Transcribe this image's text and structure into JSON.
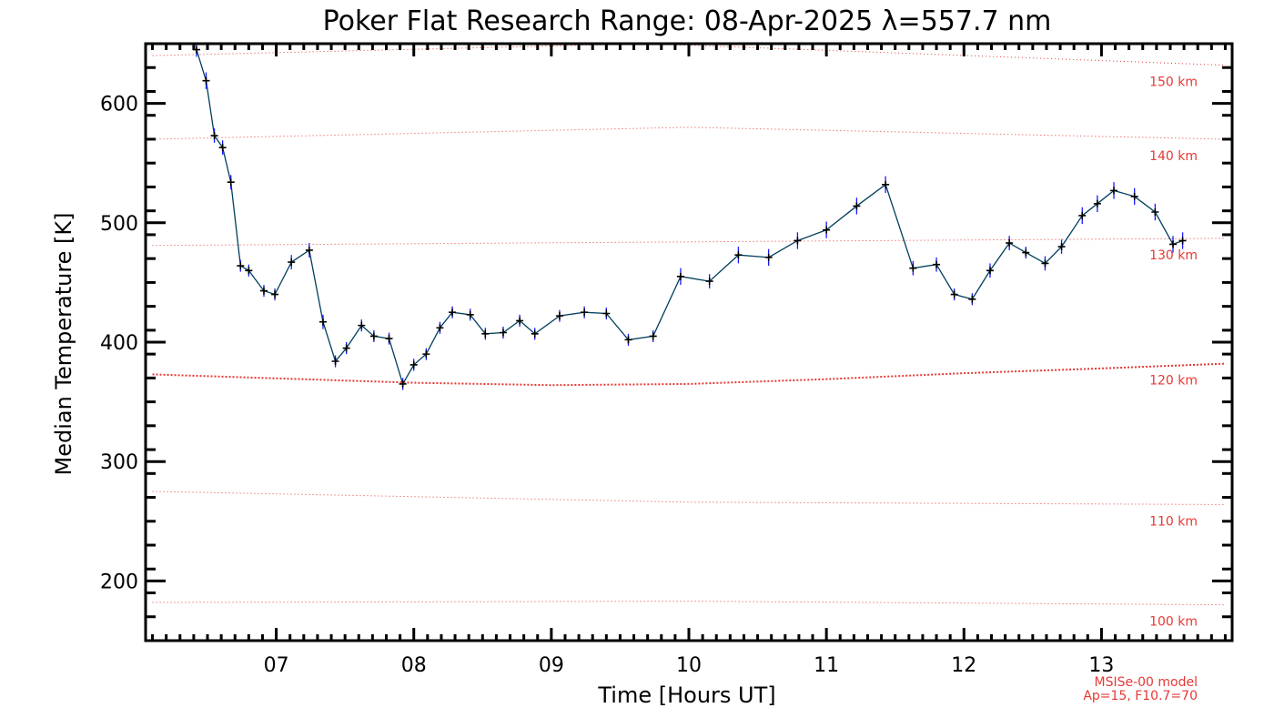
{
  "chart_data": {
    "type": "line",
    "title": "Poker Flat Research Range: 08-Apr-2025 λ=557.7 nm",
    "xlabel": "Time [Hours UT]",
    "ylabel": "Median Temperature [K]",
    "xlim": [
      6.05,
      13.95
    ],
    "ylim": [
      150,
      650
    ],
    "x_ticks": [
      7,
      8,
      9,
      10,
      11,
      12,
      13
    ],
    "x_tick_labels": [
      "07",
      "08",
      "09",
      "10",
      "11",
      "12",
      "13"
    ],
    "y_ticks": [
      200,
      300,
      400,
      500,
      600
    ],
    "y_tick_labels": [
      "200",
      "300",
      "400",
      "500",
      "600"
    ],
    "grid": false,
    "colors": {
      "series": "#003f5c",
      "error_bars": "#1a1aff",
      "markers": "#000000",
      "model": "#e53935"
    },
    "series": [
      {
        "x": [
          6.42,
          6.49,
          6.55,
          6.61,
          6.67,
          6.74,
          6.8,
          6.91,
          6.99,
          7.11,
          7.24,
          7.34,
          7.43,
          7.51,
          7.62,
          7.71,
          7.82,
          7.92,
          8.0,
          8.09,
          8.19,
          8.28,
          8.41,
          8.52,
          8.65,
          8.77,
          8.88,
          9.06,
          9.24,
          9.4,
          9.56,
          9.74,
          9.94,
          10.15,
          10.36,
          10.58,
          10.79,
          11.0,
          11.22,
          11.43,
          11.63,
          11.8,
          11.93,
          12.06,
          12.19,
          12.33,
          12.45,
          12.59,
          12.71,
          12.86,
          12.97,
          13.09,
          13.24,
          13.39,
          13.52,
          13.59
        ],
        "values": [
          645,
          619,
          573,
          563,
          534,
          464,
          460,
          443,
          440,
          467,
          477,
          417,
          384,
          395,
          414,
          405,
          403,
          365,
          381,
          390,
          412,
          425,
          423,
          407,
          408,
          418,
          407,
          422,
          425,
          424,
          402,
          405,
          455,
          451,
          473,
          471,
          485,
          494,
          514,
          532,
          462,
          465,
          440,
          436,
          460,
          483,
          475,
          466,
          480,
          506,
          516,
          527,
          522,
          509,
          482,
          485
        ],
        "error_bars": [
          6,
          7,
          6,
          6,
          6,
          5,
          5,
          5,
          5,
          6,
          6,
          6,
          5,
          5,
          5,
          5,
          5,
          5,
          5,
          5,
          5,
          5,
          5,
          5,
          5,
          5,
          5,
          5,
          5,
          5,
          5,
          5,
          7,
          6,
          7,
          7,
          7,
          7,
          7,
          7,
          6,
          6,
          5,
          5,
          6,
          6,
          5,
          6,
          6,
          7,
          7,
          7,
          7,
          7,
          7,
          7
        ]
      }
    ],
    "model_curves": [
      {
        "label": "150 km",
        "style": "dotted",
        "x": [
          6.1,
          9.7,
          13.9
        ],
        "values": [
          640,
          650,
          632
        ]
      },
      {
        "label": "140 km",
        "style": "dotted",
        "x": [
          6.1,
          10.0,
          13.9
        ],
        "values": [
          570,
          580,
          570
        ]
      },
      {
        "label": "130 km",
        "style": "dotted",
        "x": [
          6.1,
          10.0,
          13.9
        ],
        "values": [
          481,
          484,
          487
        ]
      },
      {
        "label": "120 km",
        "style": "dotted-bold",
        "x": [
          6.1,
          8.0,
          9.0,
          10.0,
          11.0,
          12.0,
          13.0,
          13.9
        ],
        "values": [
          373,
          366,
          364,
          365,
          369,
          374,
          378,
          382
        ]
      },
      {
        "label": "110 km",
        "style": "dotted",
        "x": [
          6.1,
          10.0,
          13.9
        ],
        "values": [
          275,
          266,
          264
        ]
      },
      {
        "label": "100 km",
        "style": "dotted",
        "x": [
          6.1,
          10.0,
          13.9
        ],
        "values": [
          182,
          183,
          180
        ]
      }
    ],
    "annotations": [
      "MSISe-00 model",
      "Ap=15, F10.7=70"
    ]
  }
}
